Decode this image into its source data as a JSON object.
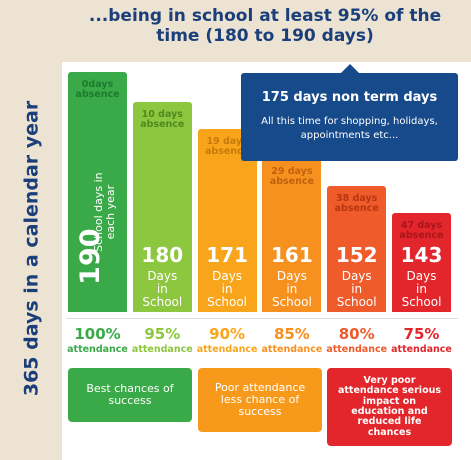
{
  "chart_data": {
    "type": "bar",
    "title": "...being in school at least 95% of the time (180 to 190 days)",
    "y_label": "365 days in a calendar year",
    "values": [
      190,
      180,
      171,
      161,
      152,
      143
    ],
    "colors": [
      "#3aaa49",
      "#8dc63f",
      "#f9a51b",
      "#f6901e",
      "#ef5b2a",
      "#e3262b"
    ],
    "label_colors": [
      "#1d7a2e",
      "#4f8a1d",
      "#c77a0a",
      "#c0620d",
      "#b7360f",
      "#a8161a"
    ],
    "absence_labels": [
      "0days absence",
      "10 days absence",
      "19 days absence",
      "29 days absence",
      "38 days absence",
      "47 days absence"
    ],
    "value_units": [
      "School days in each year",
      "Days in School",
      "Days in School",
      "Days in School",
      "Days in School",
      "Days in School"
    ],
    "attendance": {
      "values": [
        100,
        95,
        90,
        85,
        80,
        75
      ],
      "value_labels": [
        "100%",
        "95%",
        "90%",
        "85%",
        "80%",
        "75%"
      ],
      "label": "attendance"
    },
    "callout": {
      "title": "175 days non term days",
      "text": "All this time for shopping, holidays, appointments etc..."
    },
    "notes": [
      "Best chances of success",
      "Poor attendance less chance of success",
      "Very poor attendance serious impact on education and reduced life chances"
    ]
  }
}
